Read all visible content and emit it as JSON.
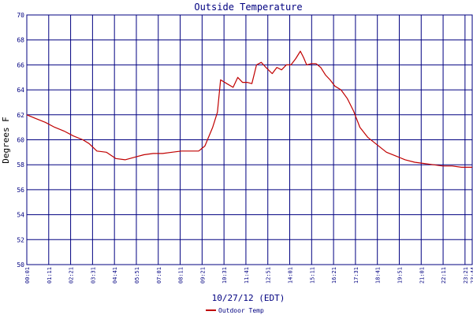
{
  "chart_data": {
    "type": "line",
    "title": "Outside Temperature",
    "xlabel": "10/27/12 (EDT)",
    "ylabel": "Degrees F",
    "ylim": [
      50,
      70
    ],
    "yticks": [
      50,
      52,
      54,
      56,
      58,
      60,
      62,
      64,
      66,
      68,
      70
    ],
    "xlim": [
      "00:01",
      "23:44"
    ],
    "xticks": [
      "00:01",
      "01:11",
      "02:21",
      "03:31",
      "04:41",
      "05:51",
      "07:01",
      "08:11",
      "09:21",
      "10:31",
      "11:41",
      "12:51",
      "14:01",
      "15:11",
      "16:21",
      "17:31",
      "18:41",
      "19:51",
      "21:01",
      "22:11",
      "23:21",
      "23:44"
    ],
    "grid": true,
    "legend": "bottom-left",
    "series": [
      {
        "name": "Outdoor Temp",
        "color": "#c00000",
        "x": [
          "00:01",
          "00:30",
          "01:00",
          "01:30",
          "02:00",
          "02:30",
          "03:00",
          "03:20",
          "03:45",
          "04:15",
          "04:45",
          "05:15",
          "05:45",
          "06:15",
          "06:45",
          "07:15",
          "07:45",
          "08:15",
          "08:45",
          "09:10",
          "09:30",
          "09:55",
          "10:10",
          "10:20",
          "10:40",
          "11:00",
          "11:15",
          "11:30",
          "11:45",
          "12:00",
          "12:15",
          "12:30",
          "12:45",
          "13:05",
          "13:20",
          "13:35",
          "13:50",
          "14:05",
          "14:20",
          "14:35",
          "14:45",
          "14:55",
          "15:10",
          "15:25",
          "15:40",
          "15:55",
          "16:10",
          "16:25",
          "16:45",
          "17:05",
          "17:25",
          "17:45",
          "18:10",
          "18:40",
          "19:10",
          "19:40",
          "20:10",
          "20:40",
          "21:10",
          "21:40",
          "22:10",
          "22:40",
          "23:10",
          "23:30",
          "23:44"
        ],
        "values": [
          62.0,
          61.7,
          61.4,
          61.0,
          60.7,
          60.3,
          60.0,
          59.7,
          59.1,
          59.0,
          58.5,
          58.4,
          58.6,
          58.8,
          58.9,
          58.9,
          59.0,
          59.1,
          59.1,
          59.1,
          59.5,
          61.0,
          62.2,
          64.8,
          64.5,
          64.2,
          65.0,
          64.6,
          64.6,
          64.5,
          66.0,
          66.2,
          65.8,
          65.3,
          65.8,
          65.6,
          66.0,
          66.0,
          66.5,
          67.1,
          66.6,
          66.0,
          66.1,
          66.1,
          65.8,
          65.2,
          64.8,
          64.3,
          64.0,
          63.3,
          62.3,
          61.0,
          60.2,
          59.6,
          59.0,
          58.7,
          58.4,
          58.2,
          58.1,
          58.0,
          57.9,
          57.9,
          57.8,
          57.8,
          57.8
        ]
      }
    ]
  }
}
